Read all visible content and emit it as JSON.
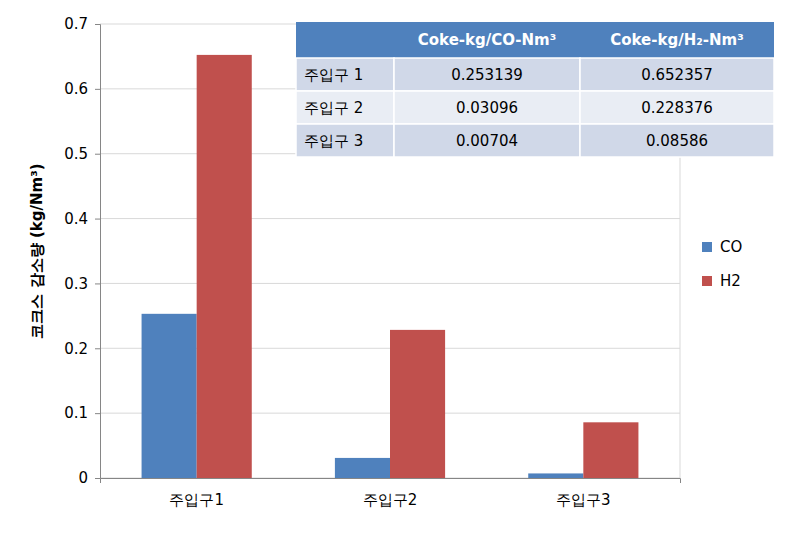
{
  "chart_data": {
    "type": "bar",
    "y_label": "코크스 감소량 (kg/Nm³)",
    "categories": [
      "주입구1",
      "주입구2",
      "주입구3"
    ],
    "series": [
      {
        "name": "CO",
        "color": "#4f81bd",
        "values": [
          0.253139,
          0.03096,
          0.00704
        ]
      },
      {
        "name": "H2",
        "color": "#c0504d",
        "values": [
          0.652357,
          0.228376,
          0.08586
        ]
      }
    ],
    "ylim": [
      0,
      0.7
    ],
    "yticks": [
      0,
      0.1,
      0.2,
      0.3,
      0.4,
      0.5,
      0.6,
      0.7
    ],
    "grid": true,
    "legend": "right",
    "table": {
      "columns": [
        "Coke-kg/CO-Nm³",
        "Coke-kg/H₂-Nm³"
      ],
      "row_labels": [
        "주입구 1",
        "주입구 2",
        "주입구 3"
      ]
    }
  }
}
